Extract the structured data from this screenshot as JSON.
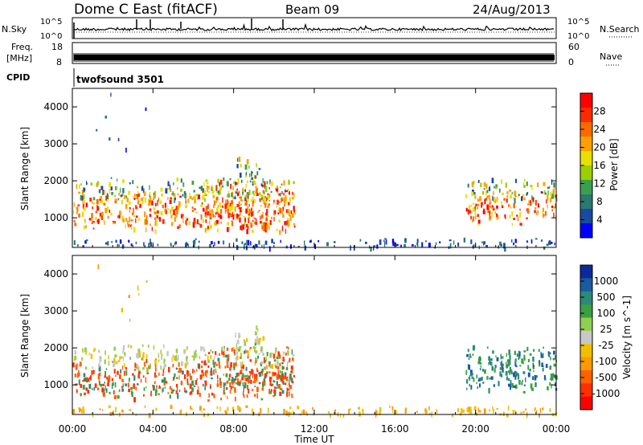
{
  "header": {
    "station": "Dome C East (fitACF)",
    "beam": "Beam 09",
    "date": "24/Aug/2013"
  },
  "strip_nsky": {
    "left_label": "N.Sky",
    "ticks_left": [
      "10^5",
      "10^0"
    ],
    "ticks_right": [
      "10^5",
      "10^0"
    ],
    "right_label": "N.Search"
  },
  "strip_freq": {
    "left_label_1": "Freq.",
    "left_label_2": "[MHz]",
    "ticks_left": [
      "18",
      "8"
    ],
    "ticks_right": [
      "60",
      "0"
    ],
    "right_label": "Nave"
  },
  "strip_cpid": {
    "left_label": "CPID",
    "program": "twofsound 3501"
  },
  "chart_data": [
    {
      "type": "heatmap",
      "quantity": "Power",
      "ylabel": "Slant Range [km]",
      "yticks": [
        "4000",
        "3000",
        "2000",
        "1000"
      ],
      "ylim": [
        200,
        4500
      ],
      "xlim": [
        0,
        24
      ],
      "colorbar_label": "Power [dB]",
      "colorbar_ticks": [
        "28",
        "24",
        "20",
        "16",
        "12",
        "8",
        "4"
      ],
      "colorbar_colors": [
        "#ff0000",
        "#ff2a00",
        "#ff6a00",
        "#ffa000",
        "#e8e000",
        "#9ad000",
        "#3aa050",
        "#2a7a70",
        "#1a4aa0",
        "#0000ff"
      ]
    },
    {
      "type": "heatmap",
      "quantity": "Velocity",
      "ylabel": "Slant Range [km]",
      "yticks": [
        "4000",
        "3000",
        "2000",
        "1000"
      ],
      "ylim": [
        200,
        4500
      ],
      "xlim": [
        0,
        24
      ],
      "colorbar_label": "Velocity [m s^-1]",
      "colorbar_ticks": [
        "1000",
        "500",
        "100",
        "25",
        "-25",
        "-100",
        "-500",
        "-1000"
      ],
      "colorbar_colors": [
        "#0a2a9a",
        "#1a5aa0",
        "#2a8a7a",
        "#3aa040",
        "#90d050",
        "#c8c8c8",
        "#f0c000",
        "#ff9a00",
        "#ff6000",
        "#ff3000",
        "#ff0000"
      ]
    }
  ],
  "xaxis": {
    "ticks": [
      "00:00",
      "04:00",
      "08:00",
      "12:00",
      "16:00",
      "20:00",
      "00:00"
    ],
    "label": "Time UT"
  }
}
